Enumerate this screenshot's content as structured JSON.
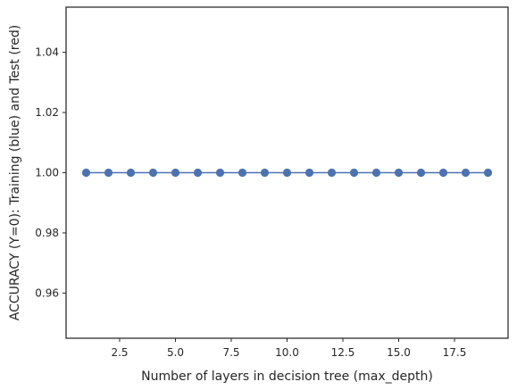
{
  "chart_data": {
    "type": "line",
    "xlabel": "Number of layers in decision tree (max_depth)",
    "ylabel": "ACCURACY (Y=0): Training (blue) and Test (red)",
    "xlim": [
      0.1,
      19.9
    ],
    "ylim": [
      0.945,
      1.055
    ],
    "xticks": [
      2.5,
      5.0,
      7.5,
      10.0,
      12.5,
      15.0,
      17.5
    ],
    "xtick_labels": [
      "2.5",
      "5.0",
      "7.5",
      "10.0",
      "12.5",
      "15.0",
      "17.5"
    ],
    "yticks": [
      0.96,
      0.98,
      1.0,
      1.02,
      1.04
    ],
    "ytick_labels": [
      "0.96",
      "0.98",
      "1.00",
      "1.02",
      "1.04"
    ],
    "grid": false,
    "series": [
      {
        "color": "#4c72b0",
        "marker": "circle",
        "x": [
          1,
          2,
          3,
          4,
          5,
          6,
          7,
          8,
          9,
          10,
          11,
          12,
          13,
          14,
          15,
          16,
          17,
          18,
          19
        ],
        "y": [
          1,
          1,
          1,
          1,
          1,
          1,
          1,
          1,
          1,
          1,
          1,
          1,
          1,
          1,
          1,
          1,
          1,
          1,
          1
        ]
      }
    ]
  }
}
